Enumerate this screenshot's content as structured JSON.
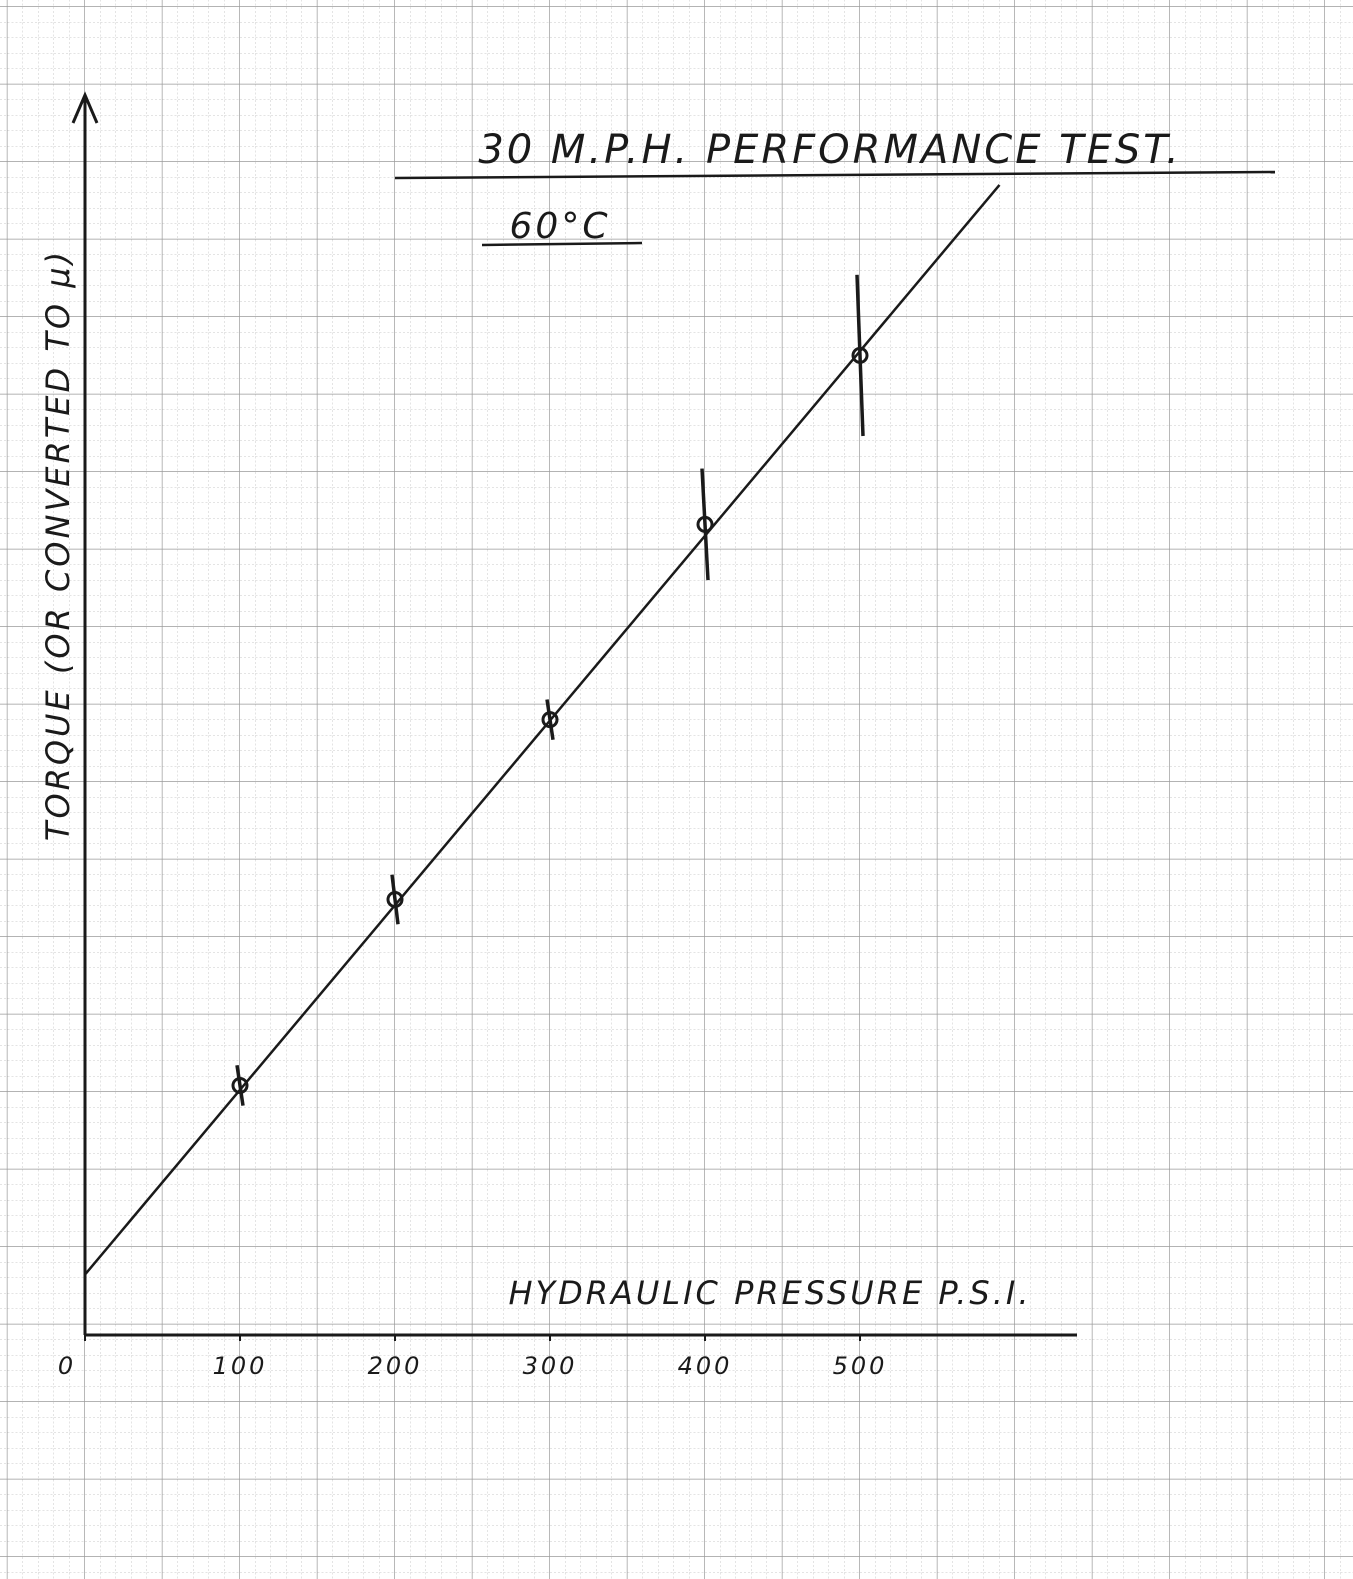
{
  "chart_data": {
    "type": "scatter",
    "title": "30 M.P.H. PERFORMANCE TEST.",
    "subtitle": "60°C",
    "x_label": "HYDRAULIC PRESSURE P.S.I.",
    "y_label": "TORQUE (OR CONVERTED TO μ)",
    "x": [
      100,
      200,
      300,
      400,
      500
    ],
    "values": [
      161,
      281,
      397,
      523,
      632
    ],
    "errors": [
      13,
      16,
      13,
      36,
      52
    ],
    "color": "#1a1a1a",
    "fit": {
      "x": [
        0,
        590
      ],
      "values": [
        39,
        742
      ]
    },
    "xlim": [
      0,
      640
    ],
    "ylim": [
      0,
      800
    ],
    "xticks": [
      0,
      100,
      200,
      300,
      400,
      500
    ]
  }
}
